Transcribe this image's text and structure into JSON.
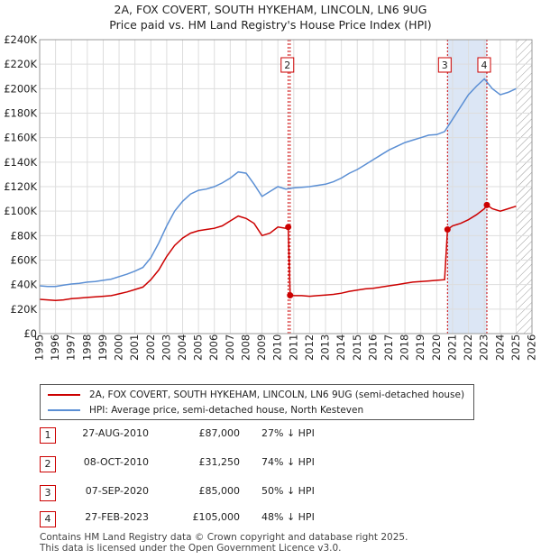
{
  "title_line1": "2A, FOX COVERT, SOUTH HYKEHAM, LINCOLN, LN6 9UG",
  "title_line2": "Price paid vs. HM Land Registry's House Price Index (HPI)",
  "colors": {
    "property": "#cc0000",
    "hpi": "#5b8fd4",
    "shade": "#dce6f5",
    "marker": "#cc0000"
  },
  "chart_data": {
    "type": "line",
    "x_range": [
      1995,
      2026
    ],
    "ylim": [
      0,
      240000
    ],
    "y_ticks": [
      0,
      20000,
      40000,
      60000,
      80000,
      100000,
      120000,
      140000,
      160000,
      180000,
      200000,
      220000,
      240000
    ],
    "y_tick_labels": [
      "£0",
      "£20K",
      "£40K",
      "£60K",
      "£80K",
      "£100K",
      "£120K",
      "£140K",
      "£160K",
      "£180K",
      "£200K",
      "£220K",
      "£240K"
    ],
    "x_ticks": [
      1995,
      1996,
      1997,
      1998,
      1999,
      2000,
      2001,
      2002,
      2003,
      2004,
      2005,
      2006,
      2007,
      2008,
      2009,
      2010,
      2011,
      2012,
      2013,
      2014,
      2015,
      2016,
      2017,
      2018,
      2019,
      2020,
      2021,
      2022,
      2023,
      2024,
      2025,
      2026
    ],
    "x_tick_labels": [
      "1995",
      "1996",
      "1997",
      "1998",
      "1999",
      "2000",
      "2001",
      "2002",
      "2003",
      "2004",
      "2005",
      "2006",
      "2007",
      "2008",
      "2009",
      "2010",
      "2011",
      "2012",
      "2013",
      "2014",
      "2015",
      "2016",
      "2017",
      "2018",
      "2019",
      "2020",
      "2021",
      "2022",
      "2023",
      "2024",
      "2025",
      "2026"
    ],
    "shaded_period": [
      2020.68,
      2023.16
    ],
    "future_hatch_from": 2025.0,
    "series": [
      {
        "name": "2A, FOX COVERT, SOUTH HYKEHAM, LINCOLN, LN6 9UG (semi-detached house)",
        "x": [
          1995.0,
          1995.5,
          1996.0,
          1996.5,
          1997.0,
          1997.5,
          1998.0,
          1998.5,
          1999.0,
          1999.5,
          2000.0,
          2000.5,
          2001.0,
          2001.5,
          2002.0,
          2002.5,
          2003.0,
          2003.5,
          2004.0,
          2004.5,
          2005.0,
          2005.5,
          2006.0,
          2006.5,
          2007.0,
          2007.5,
          2008.0,
          2008.5,
          2009.0,
          2009.5,
          2010.0,
          2010.5,
          2010.65,
          2010.77,
          2011.0,
          2011.5,
          2012.0,
          2012.5,
          2013.0,
          2013.5,
          2014.0,
          2014.5,
          2015.0,
          2015.5,
          2016.0,
          2016.5,
          2017.0,
          2017.5,
          2018.0,
          2018.5,
          2019.0,
          2019.5,
          2020.0,
          2020.5,
          2020.68,
          2021.0,
          2021.5,
          2022.0,
          2022.5,
          2023.0,
          2023.16,
          2023.5,
          2024.0,
          2024.5,
          2025.0
        ],
        "values": [
          28000,
          27500,
          27000,
          27500,
          28500,
          29000,
          29500,
          30000,
          30500,
          31000,
          32500,
          34000,
          36000,
          38000,
          44000,
          52000,
          63000,
          72000,
          78000,
          82000,
          84000,
          85000,
          86000,
          88000,
          92000,
          96000,
          94000,
          90000,
          80000,
          82000,
          87000,
          86000,
          87000,
          31250,
          31000,
          31000,
          30500,
          31000,
          31500,
          32000,
          33000,
          34500,
          35500,
          36500,
          37000,
          38000,
          39000,
          40000,
          41000,
          42000,
          42500,
          43000,
          43500,
          44000,
          85000,
          88000,
          90000,
          93000,
          97000,
          102000,
          105000,
          102000,
          100000,
          102000,
          104000
        ]
      },
      {
        "name": "HPI: Average price, semi-detached house, North Kesteven",
        "x": [
          1995.0,
          1995.5,
          1996.0,
          1996.5,
          1997.0,
          1997.5,
          1998.0,
          1998.5,
          1999.0,
          1999.5,
          2000.0,
          2000.5,
          2001.0,
          2001.5,
          2002.0,
          2002.5,
          2003.0,
          2003.5,
          2004.0,
          2004.5,
          2005.0,
          2005.5,
          2006.0,
          2006.5,
          2007.0,
          2007.5,
          2008.0,
          2008.5,
          2009.0,
          2009.5,
          2010.0,
          2010.5,
          2011.0,
          2011.5,
          2012.0,
          2012.5,
          2013.0,
          2013.5,
          2014.0,
          2014.5,
          2015.0,
          2015.5,
          2016.0,
          2016.5,
          2017.0,
          2017.5,
          2018.0,
          2018.5,
          2019.0,
          2019.5,
          2020.0,
          2020.5,
          2021.0,
          2021.5,
          2022.0,
          2022.5,
          2023.0,
          2023.5,
          2024.0,
          2024.5,
          2025.0
        ],
        "values": [
          39000,
          38500,
          38500,
          39500,
          40500,
          41000,
          42000,
          42500,
          43500,
          44500,
          46500,
          48500,
          51000,
          54000,
          62000,
          74000,
          88000,
          100000,
          108000,
          114000,
          117000,
          118000,
          120000,
          123000,
          127000,
          132000,
          131000,
          122000,
          112000,
          116000,
          120000,
          118000,
          119000,
          119500,
          120000,
          121000,
          122000,
          124000,
          127000,
          131000,
          134000,
          138000,
          142000,
          146000,
          150000,
          153000,
          156000,
          158000,
          160000,
          162000,
          162500,
          165000,
          175000,
          185000,
          195000,
          202000,
          208000,
          200000,
          195000,
          197000,
          200000
        ]
      }
    ],
    "sale_markers": [
      {
        "label": "1",
        "x": 2010.65,
        "value": 87000
      },
      {
        "label": "2",
        "x": 2010.77,
        "value": 31250
      },
      {
        "label": "3",
        "x": 2020.68,
        "value": 85000
      },
      {
        "label": "4",
        "x": 2023.16,
        "value": 105000
      }
    ],
    "marker_box_labels": [
      {
        "label": "2",
        "x": 2010.77
      },
      {
        "label": "3",
        "x": 2020.68
      },
      {
        "label": "4",
        "x": 2023.16
      }
    ]
  },
  "legend": {
    "property_label": "2A, FOX COVERT, SOUTH HYKEHAM, LINCOLN, LN6 9UG (semi-detached house)",
    "hpi_label": "HPI: Average price, semi-detached house, North Kesteven"
  },
  "sales": [
    {
      "num": "1",
      "date": "27-AUG-2010",
      "price": "£87,000",
      "hpi": "27% ↓ HPI"
    },
    {
      "num": "2",
      "date": "08-OCT-2010",
      "price": "£31,250",
      "hpi": "74% ↓ HPI"
    },
    {
      "num": "3",
      "date": "07-SEP-2020",
      "price": "£85,000",
      "hpi": "50% ↓ HPI"
    },
    {
      "num": "4",
      "date": "27-FEB-2023",
      "price": "£105,000",
      "hpi": "48% ↓ HPI"
    }
  ],
  "footer": {
    "line1": "Contains HM Land Registry data © Crown copyright and database right 2025.",
    "line2": "This data is licensed under the Open Government Licence v3.0."
  }
}
